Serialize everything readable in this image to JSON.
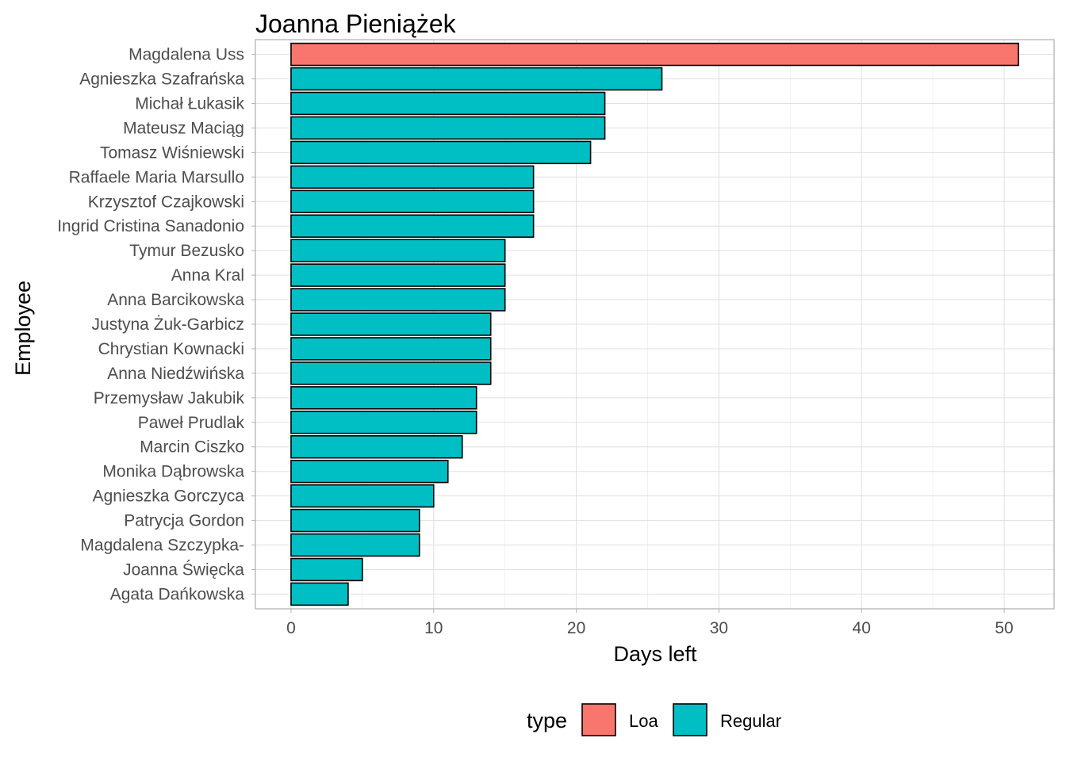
{
  "chart_data": {
    "type": "bar",
    "orientation": "horizontal",
    "title": "Joanna Pieniążek",
    "xlabel": "Days left",
    "ylabel": "Employee",
    "xlim": [
      -2.5,
      53.5
    ],
    "x_ticks": [
      0,
      10,
      20,
      30,
      40,
      50
    ],
    "grid": true,
    "legend": {
      "title": "type",
      "position": "bottom",
      "entries": [
        {
          "label": "Loa",
          "color": "#F8766D"
        },
        {
          "label": "Regular",
          "color": "#00BFC4"
        }
      ]
    },
    "categories": [
      "Magdalena Uss",
      "Agnieszka Szafrańska",
      "Michał Łukasik",
      "Mateusz Maciąg",
      "Tomasz Wiśniewski",
      "Raffaele Maria Marsullo",
      "Krzysztof Czajkowski",
      "Ingrid Cristina Sanadonio",
      "Tymur Bezusko",
      "Anna Kral",
      "Anna Barcikowska",
      "Justyna Żuk-Garbicz",
      "Chrystian Kownacki",
      "Anna Niedźwińska",
      "Przemysław Jakubik",
      "Paweł Prudlak",
      "Marcin Ciszko",
      "Monika Dąbrowska",
      "Agnieszka Gorczyca",
      "Patrycja Gordon",
      "Magdalena Szczypka-",
      "Joanna Święcka",
      "Agata Dańkowska"
    ],
    "values": [
      51,
      26,
      22,
      22,
      21,
      17,
      17,
      17,
      15,
      15,
      15,
      14,
      14,
      14,
      13,
      13,
      12,
      11,
      10,
      9,
      9,
      5,
      4
    ],
    "types": [
      "Loa",
      "Regular",
      "Regular",
      "Regular",
      "Regular",
      "Regular",
      "Regular",
      "Regular",
      "Regular",
      "Regular",
      "Regular",
      "Regular",
      "Regular",
      "Regular",
      "Regular",
      "Regular",
      "Regular",
      "Regular",
      "Regular",
      "Regular",
      "Regular",
      "Regular",
      "Regular"
    ]
  }
}
